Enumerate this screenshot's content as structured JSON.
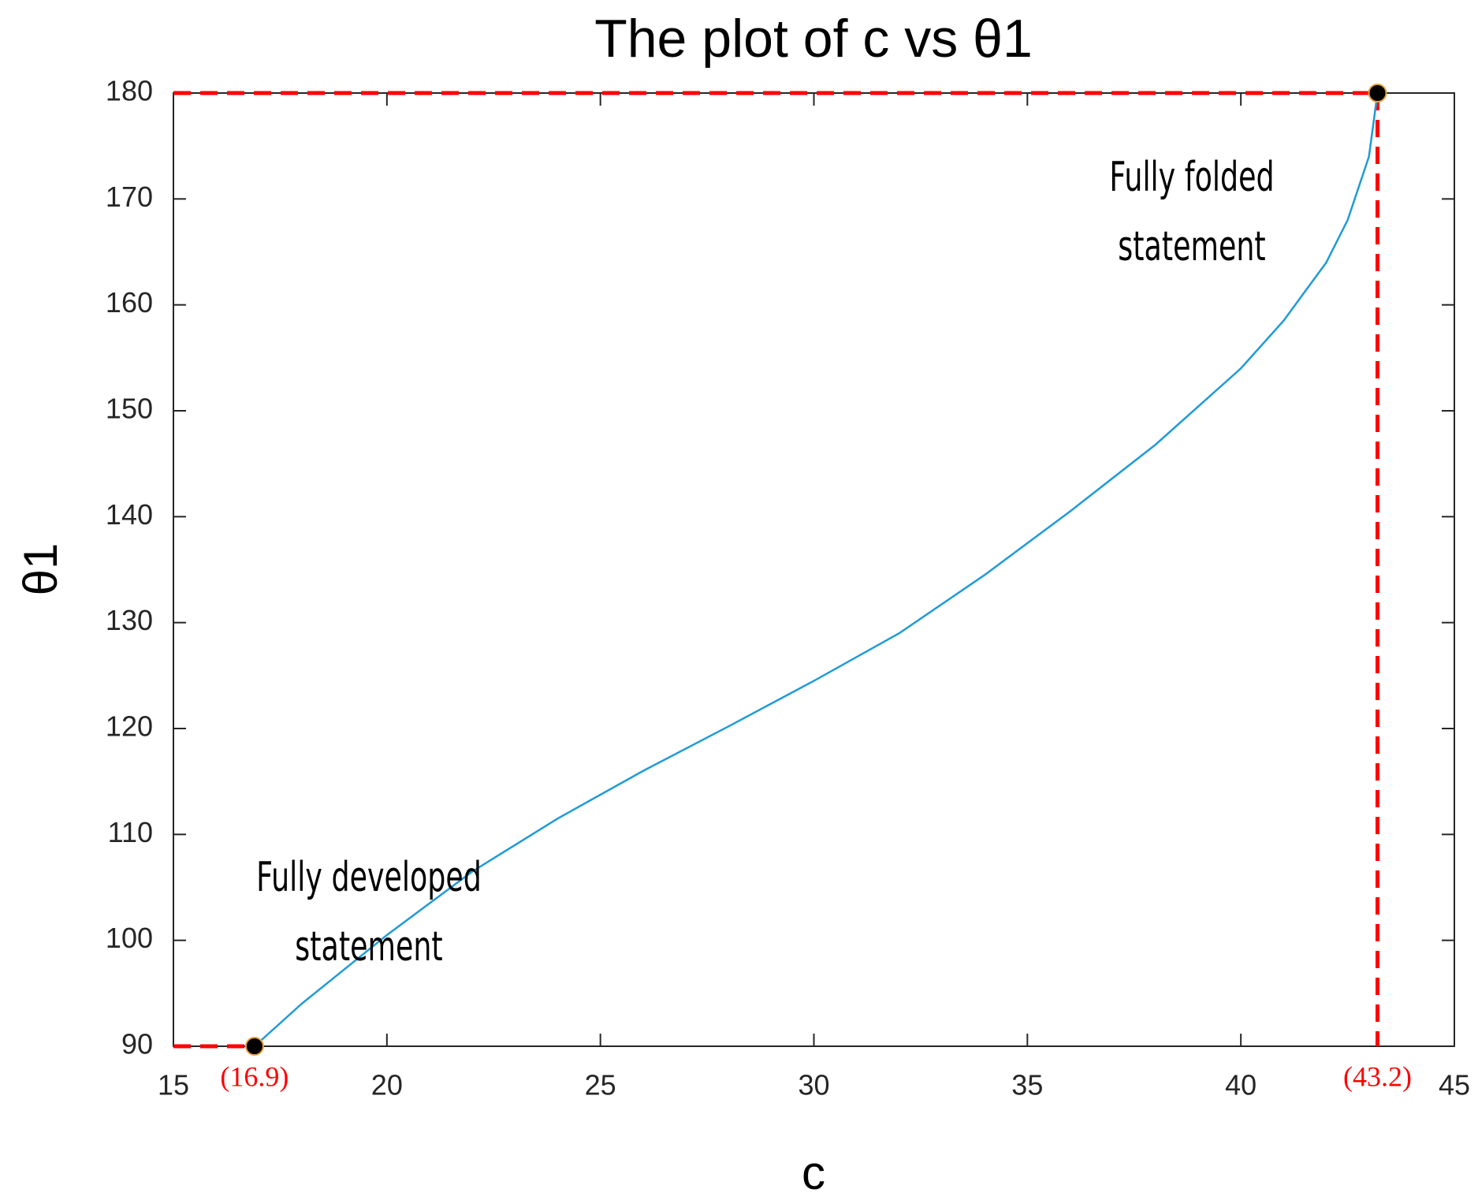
{
  "chart_data": {
    "type": "line",
    "title": "The plot of c vs θ1",
    "x_label": "c",
    "y_label": "θ1",
    "x": [
      16.9,
      18,
      20,
      22,
      24,
      26,
      28,
      30,
      32,
      34,
      36,
      38,
      40,
      41,
      42,
      42.5,
      43,
      43.2
    ],
    "series": [
      {
        "name": "θ1",
        "color": "#1f9bd7",
        "values": [
          90,
          94,
          100.5,
          106.5,
          111.5,
          116,
          120.2,
          124.5,
          129,
          134.5,
          140.5,
          146.8,
          154,
          158.5,
          164,
          168,
          174,
          180
        ]
      }
    ],
    "xlim": [
      15,
      45
    ],
    "xticks": [
      15,
      20,
      25,
      30,
      35,
      40,
      45
    ],
    "ylim": [
      90,
      180
    ],
    "yticks": [
      90,
      100,
      110,
      120,
      130,
      140,
      150,
      160,
      170,
      180
    ],
    "grid": false,
    "markers": [
      {
        "x": 16.9,
        "y": 90,
        "label": "(16.9)"
      },
      {
        "x": 43.2,
        "y": 180,
        "label": "(43.2)"
      }
    ],
    "reference_line_color": "#ff0000",
    "annotations": [
      {
        "lines": [
          "Fully developed",
          "statement"
        ]
      },
      {
        "lines": [
          "Fully folded",
          "statement"
        ]
      }
    ]
  }
}
